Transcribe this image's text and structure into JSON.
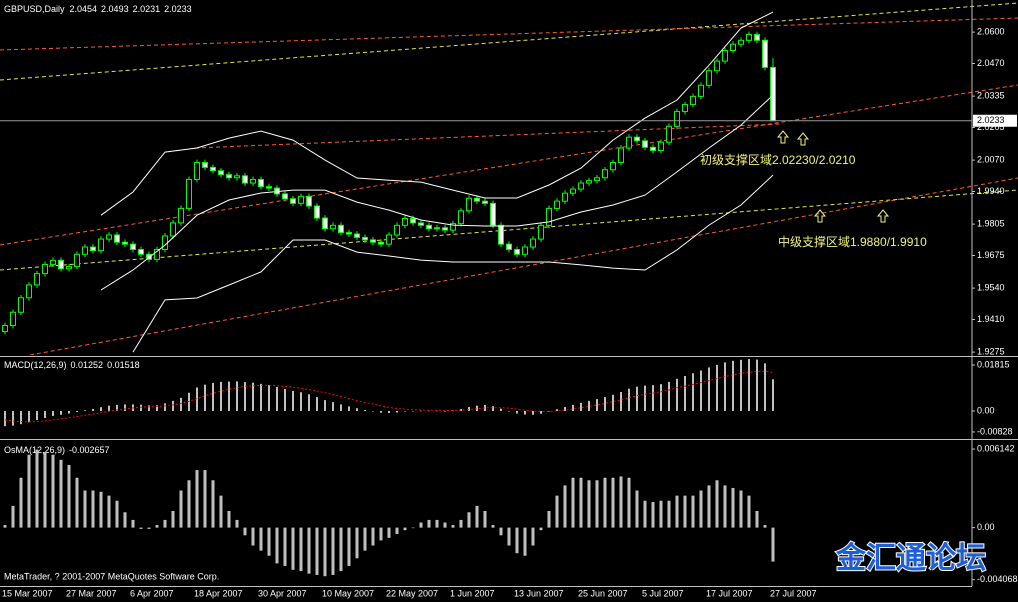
{
  "chart_data": [
    {
      "type": "candlestick",
      "title": "GBPUSD,Daily",
      "up_color": "#00ff00",
      "down_color": "#ffffff",
      "categories": [
        "15 Mar 2007",
        null,
        null,
        null,
        null,
        null,
        null,
        null,
        "27 Mar 2007",
        null,
        null,
        null,
        null,
        null,
        null,
        null,
        "6 Apr 2007",
        null,
        null,
        null,
        null,
        null,
        null,
        null,
        "18 Apr 2007",
        null,
        null,
        null,
        null,
        null,
        null,
        null,
        "30 Apr 2007",
        null,
        null,
        null,
        null,
        null,
        null,
        null,
        "10 May 2007",
        null,
        null,
        null,
        null,
        null,
        null,
        null,
        "22 May 2007",
        null,
        null,
        null,
        null,
        null,
        null,
        null,
        "1 Jun 2007",
        null,
        null,
        null,
        null,
        null,
        null,
        null,
        "13 Jun 2007",
        null,
        null,
        null,
        null,
        null,
        null,
        null,
        "25 Jun 2007",
        null,
        null,
        null,
        null,
        null,
        null,
        null,
        "5 Jul 2007",
        null,
        null,
        null,
        null,
        null,
        null,
        null,
        "17 Jul 2007",
        null,
        null,
        null,
        null,
        null,
        null,
        null,
        "27 Jul 2007"
      ],
      "open": [
        1.936,
        1.9385,
        1.944,
        1.95,
        1.9553,
        1.96,
        1.9638,
        1.9655,
        1.962,
        1.9629,
        1.968,
        1.971,
        1.9695,
        1.9743,
        1.976,
        1.973,
        1.9722,
        1.97,
        1.968,
        1.9659,
        1.97,
        1.9756,
        1.981,
        1.987,
        1.999,
        2.006,
        2.004,
        2.0026,
        2.001,
        1.9997,
        2.0005,
        1.9975,
        1.999,
        1.996,
        1.9954,
        1.993,
        1.991,
        1.9891,
        1.992,
        1.988,
        1.983,
        1.9786,
        1.98,
        1.977,
        1.9764,
        1.975,
        1.974,
        1.973,
        1.9722,
        1.976,
        1.98,
        1.9828,
        1.981,
        1.98,
        1.9786,
        1.979,
        1.978,
        1.9807,
        1.986,
        1.9912,
        1.99,
        1.9891,
        1.98,
        1.9722,
        1.97,
        1.968,
        1.971,
        1.9743,
        1.98,
        1.987,
        1.99,
        1.9933,
        1.995,
        1.9975,
        1.9985,
        1.9997,
        2.003,
        2.006,
        2.012,
        2.0165,
        2.015,
        2.0123,
        2.011,
        2.0144,
        2.021,
        2.0271,
        2.03,
        2.0334,
        2.038,
        2.044,
        2.048,
        2.0524,
        2.055,
        2.0566,
        2.059,
        2.0566,
        2.0454
      ],
      "high": [
        1.9397,
        1.9452,
        1.9512,
        1.9565,
        1.9612,
        1.965,
        1.9667,
        1.9667,
        1.9641,
        1.9692,
        1.9722,
        1.9722,
        1.9755,
        1.9772,
        1.9772,
        1.9742,
        1.9734,
        1.9712,
        1.9692,
        1.9712,
        1.9768,
        1.9822,
        1.9882,
        2.0002,
        2.0072,
        2.0072,
        2.0052,
        2.0038,
        2.0022,
        2.0017,
        2.0017,
        2.0002,
        2.0002,
        1.9972,
        1.9966,
        1.9942,
        1.9922,
        1.9932,
        1.9932,
        1.9892,
        1.9842,
        1.9812,
        1.9812,
        1.9782,
        1.9776,
        1.9762,
        1.9752,
        1.9742,
        1.9772,
        1.9812,
        1.984,
        1.984,
        1.9822,
        1.9812,
        1.9802,
        1.9802,
        1.9819,
        1.9872,
        1.9924,
        1.9924,
        1.9912,
        1.9903,
        1.9812,
        1.9734,
        1.9712,
        1.9722,
        1.9755,
        1.9812,
        1.9882,
        1.9912,
        1.9945,
        1.9962,
        1.9987,
        1.9997,
        2.0009,
        2.0042,
        2.0072,
        2.0132,
        2.0177,
        2.0177,
        2.0162,
        2.0135,
        2.0156,
        2.0222,
        2.0283,
        2.0312,
        2.0346,
        2.0392,
        2.0452,
        2.0492,
        2.0536,
        2.0562,
        2.0578,
        2.0602,
        2.0602,
        2.0578,
        2.0493
      ],
      "low": [
        1.9348,
        1.9373,
        1.9428,
        1.9488,
        1.9541,
        1.9588,
        1.9626,
        1.9608,
        1.9608,
        1.9617,
        1.9668,
        1.9683,
        1.9683,
        1.9731,
        1.9718,
        1.971,
        1.9688,
        1.9668,
        1.9647,
        1.9647,
        1.9688,
        1.9744,
        1.9798,
        1.9858,
        1.9978,
        2.0028,
        2.0014,
        1.9998,
        1.9985,
        1.9985,
        1.9963,
        1.9963,
        1.9948,
        1.9942,
        1.9918,
        1.9898,
        1.9879,
        1.9879,
        1.9868,
        1.9818,
        1.9774,
        1.9774,
        1.9758,
        1.9752,
        1.9738,
        1.9728,
        1.9718,
        1.971,
        1.971,
        1.9748,
        1.9788,
        1.9798,
        1.9788,
        1.9774,
        1.9774,
        1.9768,
        1.9768,
        1.9795,
        1.9848,
        1.9888,
        1.9879,
        1.9788,
        1.971,
        1.9688,
        1.9668,
        1.9668,
        1.9698,
        1.9731,
        1.9788,
        1.9858,
        1.9888,
        1.9921,
        1.9938,
        1.9963,
        1.9973,
        1.9985,
        2.0018,
        2.0048,
        2.0108,
        2.0138,
        2.0111,
        2.0098,
        2.0098,
        2.0132,
        2.0198,
        2.0259,
        2.0288,
        2.0322,
        2.0368,
        2.0428,
        2.0468,
        2.0512,
        2.0538,
        2.0554,
        2.0554,
        2.0442,
        2.0231
      ],
      "close": [
        1.9385,
        1.944,
        1.95,
        1.9553,
        1.96,
        1.9638,
        1.9655,
        1.962,
        1.9629,
        1.968,
        1.971,
        1.9695,
        1.9743,
        1.976,
        1.973,
        1.9722,
        1.97,
        1.968,
        1.9659,
        1.97,
        1.9756,
        1.981,
        1.987,
        1.999,
        2.006,
        2.004,
        2.0026,
        2.001,
        1.9997,
        2.0005,
        1.9975,
        1.999,
        1.996,
        1.9954,
        1.993,
        1.991,
        1.9891,
        1.992,
        1.988,
        1.983,
        1.9786,
        1.98,
        1.977,
        1.9764,
        1.975,
        1.974,
        1.973,
        1.9722,
        1.976,
        1.98,
        1.9828,
        1.981,
        1.98,
        1.9786,
        1.979,
        1.978,
        1.9807,
        1.986,
        1.9912,
        1.99,
        1.9891,
        1.98,
        1.9722,
        1.97,
        1.968,
        1.971,
        1.9743,
        1.98,
        1.987,
        1.99,
        1.9933,
        1.995,
        1.9975,
        1.9985,
        1.9997,
        2.003,
        2.006,
        2.012,
        2.0165,
        2.015,
        2.0123,
        2.011,
        2.0144,
        2.021,
        2.0271,
        2.03,
        2.0334,
        2.038,
        2.044,
        2.048,
        2.0524,
        2.055,
        2.0566,
        2.059,
        2.0566,
        2.0454,
        2.0233
      ],
      "bands": {
        "color": "#ffffff",
        "x": [
          12,
          16,
          20,
          24,
          28,
          32,
          36,
          40,
          44,
          48,
          52,
          56,
          60,
          64,
          68,
          72,
          76,
          80,
          84,
          88,
          92,
          96
        ],
        "upper": [
          1.9842,
          1.9938,
          2.0103,
          2.012,
          2.0161,
          2.019,
          2.0153,
          2.007,
          1.9996,
          1.9987,
          1.9979,
          1.9946,
          1.9913,
          1.9913,
          1.9967,
          2.0037,
          2.0153,
          2.0244,
          2.0319,
          2.0463,
          2.0617,
          2.0683
        ],
        "middle": [
          1.9532,
          1.9615,
          1.9718,
          1.9842,
          1.9905,
          1.9934,
          1.9946,
          1.9946,
          1.9896,
          1.9863,
          1.9822,
          1.9801,
          1.9797,
          1.9797,
          1.9814,
          1.9855,
          1.9884,
          1.9925,
          2.0021,
          2.012,
          2.0215,
          2.0339
        ],
        "lower": [
          null,
          1.9275,
          1.9491,
          1.9499,
          1.9553,
          1.9607,
          1.9739,
          1.9739,
          1.9689,
          1.9673,
          1.9656,
          1.9648,
          1.9648,
          1.9648,
          1.9648,
          1.9636,
          1.9623,
          1.9615,
          1.9698,
          1.9801,
          1.9884,
          2.0008
        ]
      },
      "ylim": [
        1.9263,
        2.0733
      ],
      "yticks": [
        {
          "value": 2.06,
          "label": "2.0600"
        },
        {
          "value": 2.047,
          "label": "2.0470"
        },
        2.0335,
        {
          "value": 2.0205,
          "label": "2.0205"
        },
        {
          "value": 2.007,
          "label": "2.0070"
        },
        {
          "value": 1.994,
          "label": "1.9940"
        },
        1.9805,
        1.9675,
        {
          "value": 1.954,
          "label": "1.9540"
        },
        {
          "value": 1.941,
          "label": "1.9410"
        },
        1.9275
      ],
      "annotations": [
        "初级支撑区域2.02230/2.0210",
        "中级支撑区域1.9880/1.9910"
      ]
    },
    {
      "type": "macd",
      "title": "MACD(12,26,9)",
      "color": "#ffffff",
      "signal_color": "#ff0000",
      "values": [
        -0.006,
        -0.0058,
        -0.0052,
        -0.0045,
        -0.0036,
        -0.0028,
        -0.002,
        -0.0015,
        -0.001,
        -0.0004,
        0.0003,
        0.0008,
        0.0015,
        0.0021,
        0.0024,
        0.0026,
        0.0026,
        0.0025,
        0.0022,
        0.0023,
        0.003,
        0.004,
        0.0052,
        0.0072,
        0.0093,
        0.0104,
        0.0111,
        0.0115,
        0.0116,
        0.0117,
        0.0114,
        0.0112,
        0.0107,
        0.0102,
        0.0095,
        0.0087,
        0.0079,
        0.0074,
        0.0066,
        0.0055,
        0.0043,
        0.0035,
        0.0026,
        0.0018,
        0.0011,
        0.0004,
        -0.0002,
        -0.0007,
        -0.0008,
        -0.0006,
        -0.0002,
        0.0,
        0.0001,
        0.0001,
        0.0001,
        0.0,
        0.0002,
        0.0008,
        0.0016,
        0.0021,
        0.0024,
        0.0019,
        0.0009,
        -0.0001,
        -0.001,
        -0.0014,
        -0.0015,
        -0.0011,
        -0.0002,
        0.0007,
        0.0016,
        0.0024,
        0.0032,
        0.004,
        0.0047,
        0.0055,
        0.0064,
        0.0075,
        0.0088,
        0.0096,
        0.01,
        0.0102,
        0.0106,
        0.0115,
        0.0127,
        0.0138,
        0.0149,
        0.016,
        0.0172,
        0.0182,
        0.0192,
        0.0198,
        0.0202,
        0.0205,
        0.0203,
        0.0188,
        0.01252
      ],
      "signal_values": [
        -0.0035,
        -0.004,
        -0.0042,
        -0.0043,
        -0.0042,
        -0.0039,
        -0.0035,
        -0.0031,
        -0.0027,
        -0.0022,
        -0.0017,
        -0.0012,
        -0.0007,
        -0.0001,
        0.0004,
        0.0008,
        0.0012,
        0.0015,
        0.0016,
        0.0018,
        0.002,
        0.0024,
        0.003,
        0.0038,
        0.0049,
        0.006,
        0.007,
        0.0079,
        0.0086,
        0.0092,
        0.0097,
        0.01,
        0.0101,
        0.0101,
        0.01,
        0.0097,
        0.0094,
        0.009,
        0.0085,
        0.0079,
        0.0072,
        0.0065,
        0.0057,
        0.0049,
        0.0041,
        0.0034,
        0.0027,
        0.002,
        0.0014,
        0.001,
        0.0007,
        0.0005,
        0.0004,
        0.0003,
        0.0003,
        0.0002,
        0.0002,
        0.0003,
        0.0006,
        0.0009,
        0.0012,
        0.0013,
        0.0013,
        0.0011,
        0.0007,
        0.0003,
        0.0,
        -0.0002,
        -0.0002,
        0.0,
        0.0003,
        0.0008,
        0.0013,
        0.0018,
        0.0024,
        0.003,
        0.0037,
        0.0044,
        0.0053,
        0.006,
        0.0066,
        0.0071,
        0.0076,
        0.0083,
        0.0092,
        0.0098,
        0.0105,
        0.0112,
        0.012,
        0.0128,
        0.0136,
        0.0143,
        0.0149,
        0.0153,
        0.0156,
        0.0157,
        0.01518
      ],
      "ylim": [
        -0.01027,
        0.02092
      ],
      "yticks": [
        0.01815,
        {
          "value": 0,
          "label": "0.00"
        },
        -0.00828
      ]
    },
    {
      "type": "bar",
      "title": "OsMA(12,26,9)",
      "color": "#c0c0c0",
      "values": [
        0.0002,
        0.0017,
        0.0039,
        0.0057,
        0.0061,
        0.0059,
        0.0057,
        0.0053,
        0.0049,
        0.0039,
        0.0029,
        0.0029,
        0.0028,
        0.0025,
        0.0021,
        0.0012,
        0.0006,
        -0.0001,
        -0.0001,
        0.0002,
        0.0006,
        0.0013,
        0.0029,
        0.0037,
        0.0045,
        0.0045,
        0.0037,
        0.0025,
        0.0013,
        0.0006,
        -0.0006,
        -0.0014,
        -0.0018,
        -0.0022,
        -0.0028,
        -0.003,
        -0.0033,
        -0.0034,
        -0.0036,
        -0.0037,
        -0.0038,
        -0.0037,
        -0.0034,
        -0.003,
        -0.0024,
        -0.0018,
        -0.0014,
        -0.001,
        -0.0008,
        -0.0005,
        -0.0002,
        0.0,
        0.0004,
        0.0006,
        0.0006,
        0.0004,
        0.0002,
        0.0006,
        0.0012,
        0.0017,
        0.0013,
        0.0002,
        -0.0006,
        -0.0014,
        -0.002,
        -0.0022,
        -0.0014,
        -0.0002,
        0.0013,
        0.0025,
        0.0033,
        0.0039,
        0.0039,
        0.0037,
        0.0037,
        0.0039,
        0.0039,
        0.004,
        0.0039,
        0.0029,
        0.0021,
        0.002,
        0.0021,
        0.0021,
        0.0025,
        0.0025,
        0.0025,
        0.0029,
        0.0033,
        0.0037,
        0.0033,
        0.0031,
        0.0029,
        0.0025,
        0.0013,
        0.0002,
        -0.002657
      ],
      "ylim": [
        -0.004565,
        0.006772
      ],
      "yticks": [
        0.006142,
        {
          "value": 0,
          "label": "0.00"
        },
        -0.004068
      ]
    }
  ],
  "footer": "MetaTrader, ? 2001-2007 MetaQuotes Software Corp.",
  "watermark": "金汇通论坛"
}
